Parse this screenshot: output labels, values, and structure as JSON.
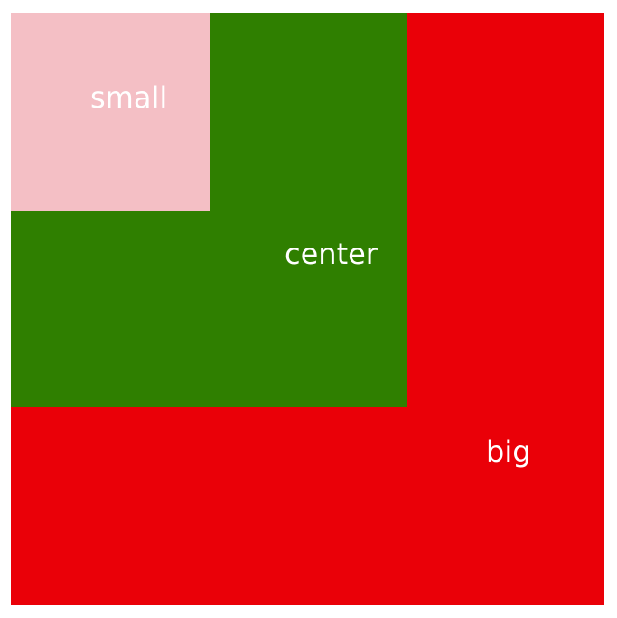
{
  "boxes": {
    "big": {
      "label": "big",
      "color": "#ea0008"
    },
    "center": {
      "label": "center",
      "color": "#2f7f00"
    },
    "small": {
      "label": "small",
      "color": "#f4bfc5"
    }
  }
}
